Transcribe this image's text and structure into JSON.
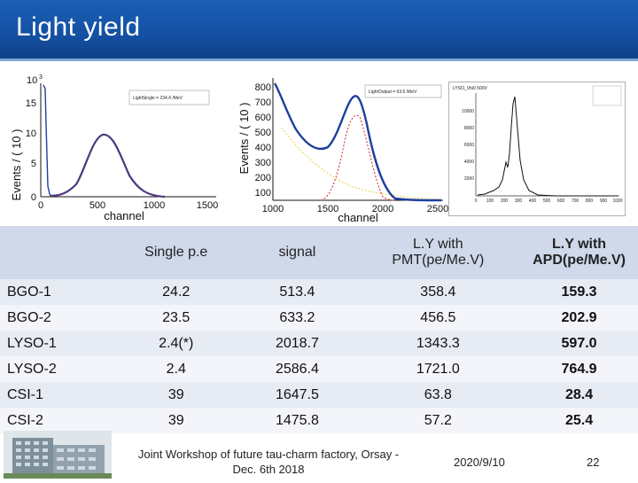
{
  "slide": {
    "title": "Light yield"
  },
  "plots": {
    "p1": {
      "ylabel": "Events / ( 10 )",
      "xlabel": "channel",
      "exponent": "10",
      "exponent_power": "3",
      "yticks": [
        "15",
        "10",
        "5",
        "0"
      ],
      "xticks": [
        "0",
        "500",
        "1000",
        "1500"
      ],
      "legend": "LightSingle = 234.4 /MeV"
    },
    "p2": {
      "ylabel": "Events / ( 10 )",
      "xlabel": "channel",
      "yticks": [
        "800",
        "700",
        "600",
        "500",
        "400",
        "300",
        "200",
        "100"
      ],
      "xticks": [
        "1000",
        "1500",
        "2000",
        "2500"
      ],
      "legend": "LightOutput = 63.6 /MeV"
    },
    "p3": {
      "title": "LYSO_Vbi0 500V",
      "yticks": [
        "10000",
        "8000",
        "6000",
        "4000",
        "2000"
      ],
      "xticks": [
        "0",
        "100",
        "200",
        "300",
        "400",
        "500",
        "600",
        "700",
        "800",
        "900",
        "1000"
      ]
    }
  },
  "table": {
    "headers": [
      "",
      "Single p.e",
      "signal",
      "L.Y with PMT(pe/Me.V)",
      "L.Y with APD(pe/Me.V)"
    ],
    "rows": [
      [
        "BGO-1",
        "24.2",
        "513.4",
        "358.4",
        "159.3"
      ],
      [
        "BGO-2",
        "23.5",
        "633.2",
        "456.5",
        "202.9"
      ],
      [
        "LYSO-1",
        "2.4(*)",
        "2018.7",
        "1343.3",
        "597.0"
      ],
      [
        "LYSO-2",
        "2.4",
        "2586.4",
        "1721.0",
        "764.9"
      ],
      [
        "CSI-1",
        "39",
        "1647.5",
        "63.8",
        "28.4"
      ],
      [
        "CSI-2",
        "39",
        "1475.8",
        "57.2",
        "25.4"
      ]
    ]
  },
  "footer": {
    "conference_line1": "Joint Workshop of future tau-charm factory, Orsay -",
    "conference_line2": "Dec. 6th 2018",
    "date": "2020/9/10",
    "page": "22"
  },
  "colors": {
    "header_blue": "#1450a3",
    "header_row_bg": "#cfd9ea",
    "row_odd_bg": "#e6ebf4",
    "row_even_bg": "#f3f5fa",
    "fit_total": "#1f3f9f",
    "fit_signal": "#d02020",
    "fit_background": "#e8d23a"
  }
}
